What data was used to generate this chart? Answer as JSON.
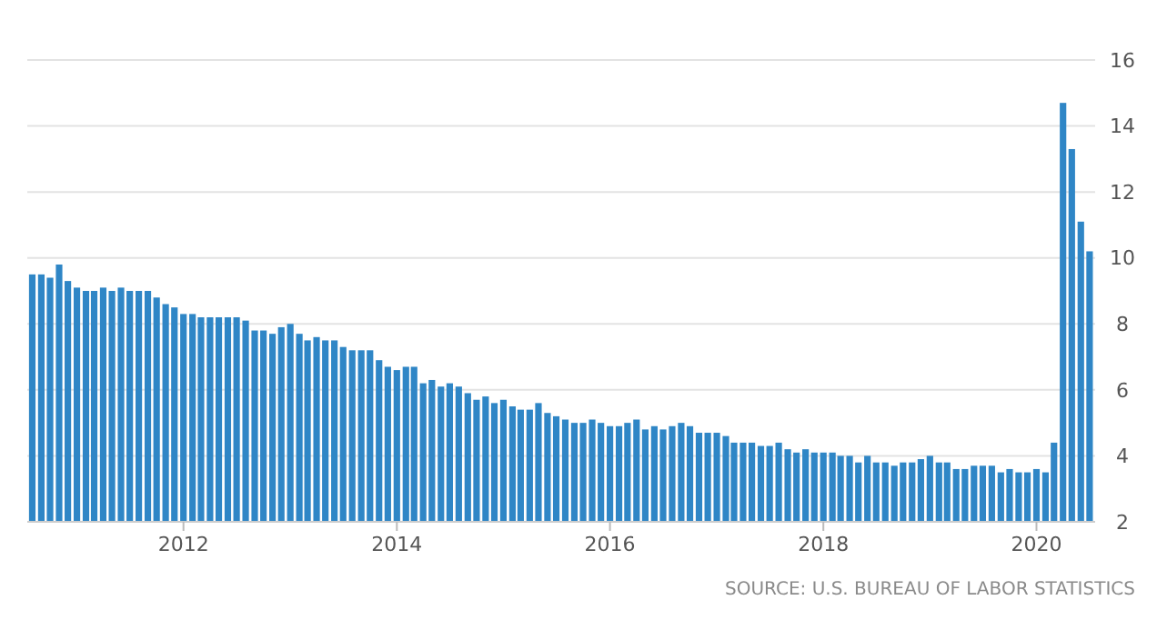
{
  "chart_data": {
    "type": "bar",
    "x": [
      "2010-08",
      "2010-09",
      "2010-10",
      "2010-11",
      "2010-12",
      "2011-01",
      "2011-02",
      "2011-03",
      "2011-04",
      "2011-05",
      "2011-06",
      "2011-07",
      "2011-08",
      "2011-09",
      "2011-10",
      "2011-11",
      "2011-12",
      "2012-01",
      "2012-02",
      "2012-03",
      "2012-04",
      "2012-05",
      "2012-06",
      "2012-07",
      "2012-08",
      "2012-09",
      "2012-10",
      "2012-11",
      "2012-12",
      "2013-01",
      "2013-02",
      "2013-03",
      "2013-04",
      "2013-05",
      "2013-06",
      "2013-07",
      "2013-08",
      "2013-09",
      "2013-10",
      "2013-11",
      "2013-12",
      "2014-01",
      "2014-02",
      "2014-03",
      "2014-04",
      "2014-05",
      "2014-06",
      "2014-07",
      "2014-08",
      "2014-09",
      "2014-10",
      "2014-11",
      "2014-12",
      "2015-01",
      "2015-02",
      "2015-03",
      "2015-04",
      "2015-05",
      "2015-06",
      "2015-07",
      "2015-08",
      "2015-09",
      "2015-10",
      "2015-11",
      "2015-12",
      "2016-01",
      "2016-02",
      "2016-03",
      "2016-04",
      "2016-05",
      "2016-06",
      "2016-07",
      "2016-08",
      "2016-09",
      "2016-10",
      "2016-11",
      "2016-12",
      "2017-01",
      "2017-02",
      "2017-03",
      "2017-04",
      "2017-05",
      "2017-06",
      "2017-07",
      "2017-08",
      "2017-09",
      "2017-10",
      "2017-11",
      "2017-12",
      "2018-01",
      "2018-02",
      "2018-03",
      "2018-04",
      "2018-05",
      "2018-06",
      "2018-07",
      "2018-08",
      "2018-09",
      "2018-10",
      "2018-11",
      "2018-12",
      "2019-01",
      "2019-02",
      "2019-03",
      "2019-04",
      "2019-05",
      "2019-06",
      "2019-07",
      "2019-08",
      "2019-09",
      "2019-10",
      "2019-11",
      "2019-12",
      "2020-01",
      "2020-02",
      "2020-03",
      "2020-04",
      "2020-05",
      "2020-06",
      "2020-07"
    ],
    "values": [
      9.5,
      9.5,
      9.4,
      9.8,
      9.3,
      9.1,
      9.0,
      9.0,
      9.1,
      9.0,
      9.1,
      9.0,
      9.0,
      9.0,
      8.8,
      8.6,
      8.5,
      8.3,
      8.3,
      8.2,
      8.2,
      8.2,
      8.2,
      8.2,
      8.1,
      7.8,
      7.8,
      7.7,
      7.9,
      8.0,
      7.7,
      7.5,
      7.6,
      7.5,
      7.5,
      7.3,
      7.2,
      7.2,
      7.2,
      6.9,
      6.7,
      6.6,
      6.7,
      6.7,
      6.2,
      6.3,
      6.1,
      6.2,
      6.1,
      5.9,
      5.7,
      5.8,
      5.6,
      5.7,
      5.5,
      5.4,
      5.4,
      5.6,
      5.3,
      5.2,
      5.1,
      5.0,
      5.0,
      5.1,
      5.0,
      4.9,
      4.9,
      5.0,
      5.1,
      4.8,
      4.9,
      4.8,
      4.9,
      5.0,
      4.9,
      4.7,
      4.7,
      4.7,
      4.6,
      4.4,
      4.4,
      4.4,
      4.3,
      4.3,
      4.4,
      4.2,
      4.1,
      4.2,
      4.1,
      4.1,
      4.1,
      4.0,
      4.0,
      3.8,
      4.0,
      3.8,
      3.8,
      3.7,
      3.8,
      3.8,
      3.9,
      4.0,
      3.8,
      3.8,
      3.6,
      3.6,
      3.7,
      3.7,
      3.7,
      3.5,
      3.6,
      3.5,
      3.5,
      3.6,
      3.5,
      4.4,
      14.7,
      13.3,
      11.1,
      10.2
    ],
    "color": "#2f86c6",
    "xlim": [
      "2010-07-15",
      "2020-07-20"
    ],
    "xticks": [
      "2012",
      "2014",
      "2016",
      "2018",
      "2020"
    ],
    "ylim": [
      2,
      16
    ],
    "yticks": [
      2,
      4,
      6,
      8,
      10,
      12,
      14,
      16
    ],
    "grid": "y",
    "annotations": [
      "SOURCE: U.S. BUREAU OF LABOR STATISTICS"
    ]
  }
}
